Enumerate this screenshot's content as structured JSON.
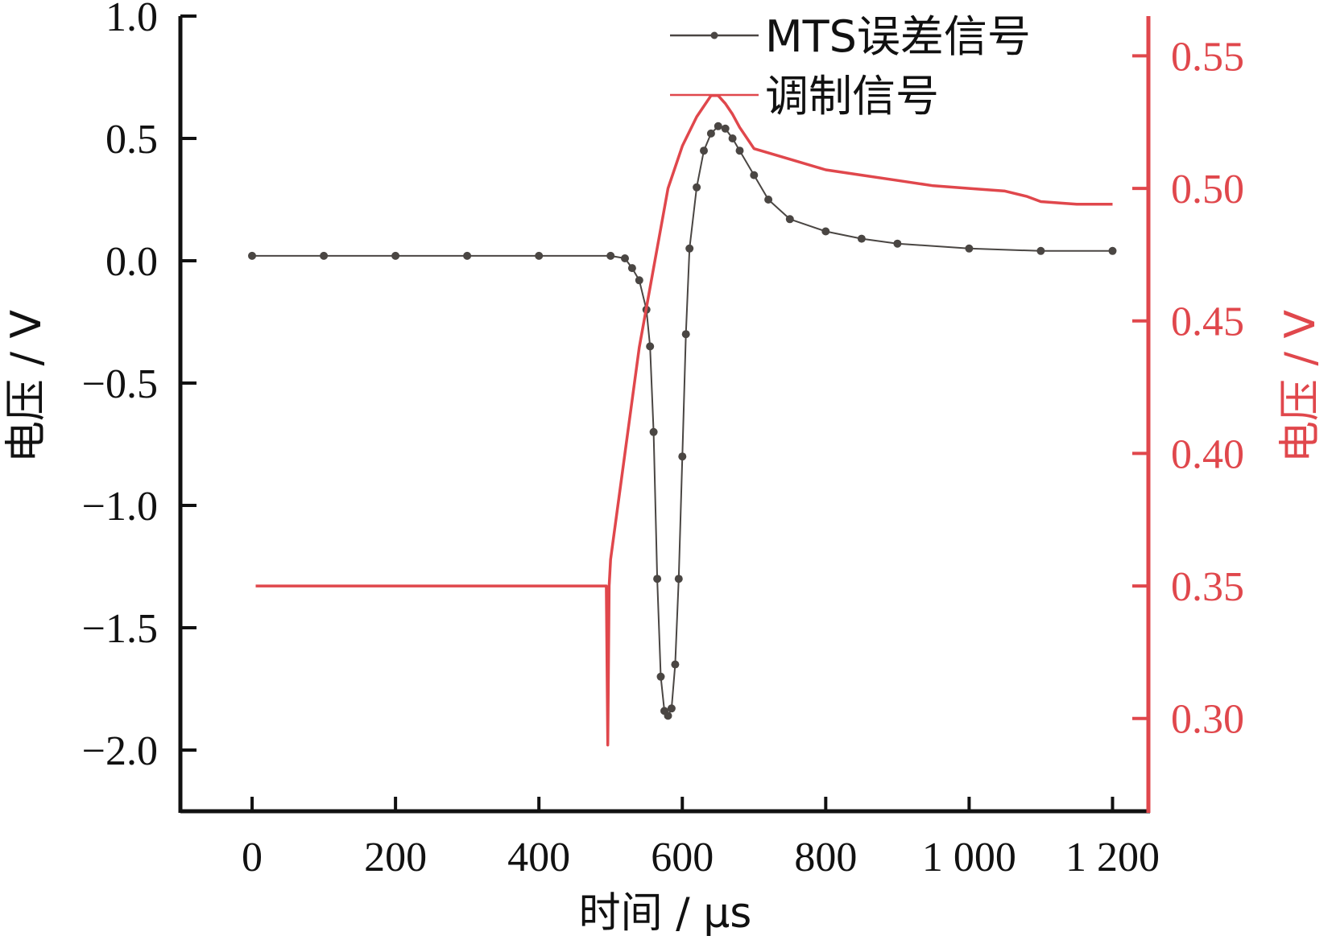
{
  "colors": {
    "error": "#4a4643",
    "modulation": "#e0474c",
    "axis": "#111111"
  },
  "chart_data": {
    "type": "line",
    "xlabel": "时间 / μs",
    "ylabel_left": "电压 / V",
    "ylabel_right": "电压 / V",
    "xlim": [
      -100,
      1250
    ],
    "ylim_left": [
      -2.25,
      1.0
    ],
    "ylim_right": [
      0.265,
      0.565
    ],
    "x_ticks": [
      0,
      200,
      400,
      600,
      800,
      1000,
      1200
    ],
    "x_tick_labels": [
      "0",
      "200",
      "400",
      "600",
      "800",
      "1 000",
      "1 200"
    ],
    "y_left_ticks": [
      1.0,
      0.5,
      0.0,
      -0.5,
      -1.0,
      -1.5,
      -2.0
    ],
    "y_left_tick_labels": [
      "1.0",
      "0.5",
      "0.0",
      "−0.5",
      "−1.0",
      "−1.5",
      "−2.0"
    ],
    "y_right_ticks": [
      0.55,
      0.5,
      0.45,
      0.4,
      0.35,
      0.3
    ],
    "y_right_tick_labels": [
      "0.55",
      "0.50",
      "0.45",
      "0.40",
      "0.35",
      "0.30"
    ],
    "legend_position": "top-right",
    "grid": false,
    "series": [
      {
        "name": "MTS误差信号",
        "axis": "left",
        "style": "line-with-dots",
        "x": [
          0,
          100,
          200,
          300,
          400,
          500,
          520,
          530,
          540,
          550,
          555,
          560,
          565,
          570,
          575,
          580,
          585,
          590,
          595,
          600,
          605,
          610,
          620,
          630,
          640,
          650,
          660,
          670,
          680,
          700,
          720,
          750,
          800,
          850,
          900,
          1000,
          1100,
          1200
        ],
        "y": [
          0.02,
          0.02,
          0.02,
          0.02,
          0.02,
          0.02,
          0.01,
          -0.03,
          -0.08,
          -0.2,
          -0.35,
          -0.7,
          -1.3,
          -1.7,
          -1.84,
          -1.86,
          -1.83,
          -1.65,
          -1.3,
          -0.8,
          -0.3,
          0.05,
          0.3,
          0.45,
          0.52,
          0.55,
          0.54,
          0.5,
          0.45,
          0.35,
          0.25,
          0.17,
          0.12,
          0.09,
          0.07,
          0.05,
          0.04,
          0.04
        ]
      },
      {
        "name": "调制信号",
        "axis": "right",
        "style": "line",
        "x": [
          5,
          100,
          200,
          300,
          400,
          494,
          496,
          498,
          500,
          520,
          540,
          560,
          580,
          600,
          620,
          640,
          650,
          660,
          670,
          680,
          700,
          750,
          800,
          850,
          900,
          950,
          1000,
          1050,
          1080,
          1100,
          1150,
          1200
        ],
        "y": [
          0.35,
          0.35,
          0.35,
          0.35,
          0.35,
          0.35,
          0.29,
          0.35,
          0.36,
          0.4,
          0.44,
          0.47,
          0.5,
          0.516,
          0.527,
          0.535,
          0.535,
          0.532,
          0.528,
          0.523,
          0.515,
          0.511,
          0.507,
          0.505,
          0.503,
          0.501,
          0.5,
          0.499,
          0.497,
          0.495,
          0.494,
          0.494
        ]
      }
    ]
  }
}
